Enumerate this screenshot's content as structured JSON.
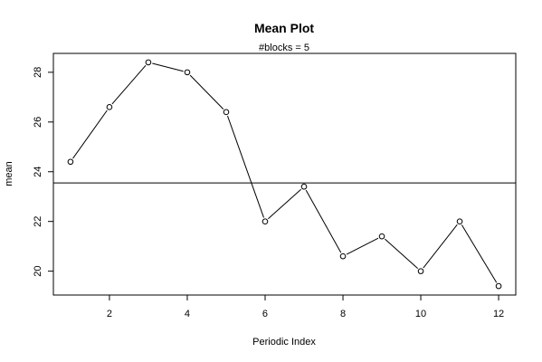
{
  "chart_data": {
    "type": "line",
    "title": "Mean Plot",
    "subtitle": "#blocks =  5",
    "xlabel": "Periodic Index",
    "ylabel": "mean",
    "x": [
      1,
      2,
      3,
      4,
      5,
      6,
      7,
      8,
      9,
      10,
      11,
      12
    ],
    "series": [
      {
        "values": [
          24.4,
          26.6,
          28.4,
          28.0,
          26.4,
          22.0,
          23.4,
          20.6,
          21.4,
          20.0,
          22.0,
          19.4
        ]
      }
    ],
    "reference_line": {
      "y": 23.55
    },
    "xticks": [
      2,
      4,
      6,
      8,
      10,
      12
    ],
    "yticks": [
      20,
      22,
      24,
      26,
      28
    ],
    "xlim": [
      0.56,
      12.44
    ],
    "ylim": [
      19.04,
      28.76
    ],
    "grid": false,
    "markers": "open-circle",
    "colors": {
      "line": "#000000",
      "axis": "#000000",
      "background": "#ffffff"
    }
  }
}
